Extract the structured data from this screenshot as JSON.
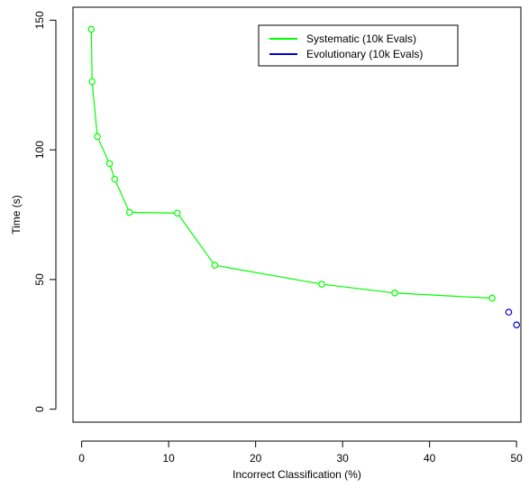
{
  "chart_data": {
    "type": "scatter",
    "xlabel": "Incorrect Classification (%)",
    "ylabel": "Time (s)",
    "xlim": [
      -1,
      50.5
    ],
    "ylim": [
      -5,
      155
    ],
    "xticks": [
      0,
      10,
      20,
      30,
      40,
      50
    ],
    "yticks": [
      0,
      50,
      100,
      150
    ],
    "grid": false,
    "legend_position": "top-right",
    "series": [
      {
        "name": "Systematic (10k Evals)",
        "color": "#00ff00",
        "connected": true,
        "points": [
          {
            "x": 1.1,
            "y": 146.5
          },
          {
            "x": 1.2,
            "y": 126.3
          },
          {
            "x": 1.8,
            "y": 105.1
          },
          {
            "x": 3.2,
            "y": 94.7
          },
          {
            "x": 3.8,
            "y": 88.7
          },
          {
            "x": 5.5,
            "y": 75.9
          },
          {
            "x": 11.0,
            "y": 75.6
          },
          {
            "x": 15.3,
            "y": 55.5
          },
          {
            "x": 27.6,
            "y": 48.2
          },
          {
            "x": 36.0,
            "y": 44.8
          },
          {
            "x": 47.2,
            "y": 42.8
          }
        ]
      },
      {
        "name": "Evolutionary (10k Evals)",
        "color": "#0000cc",
        "connected": false,
        "points": [
          {
            "x": 49.1,
            "y": 37.4
          },
          {
            "x": 50.0,
            "y": 32.5
          }
        ]
      }
    ]
  }
}
